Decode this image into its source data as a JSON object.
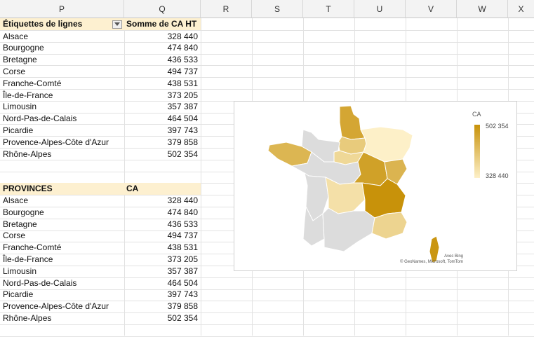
{
  "columns": [
    "P",
    "Q",
    "R",
    "S",
    "T",
    "U",
    "V",
    "W",
    "X"
  ],
  "pivot": {
    "header_label": "Étiquettes de lignes",
    "header_value": "Somme de CA HT",
    "filter_icon": "dropdown-arrow-icon",
    "rows": [
      {
        "label": "Alsace",
        "value": "328 440"
      },
      {
        "label": "Bourgogne",
        "value": "474 840"
      },
      {
        "label": "Bretagne",
        "value": "436 533"
      },
      {
        "label": "Corse",
        "value": "494 737"
      },
      {
        "label": "Franche-Comté",
        "value": "438 531"
      },
      {
        "label": "Île-de-France",
        "value": "373 205"
      },
      {
        "label": "Limousin",
        "value": "357 387"
      },
      {
        "label": "Nord-Pas-de-Calais",
        "value": "464 504"
      },
      {
        "label": "Picardie",
        "value": "397 743"
      },
      {
        "label": "Provence-Alpes-Côte d'Azur",
        "value": "379 858"
      },
      {
        "label": "Rhône-Alpes",
        "value": "502 354"
      }
    ]
  },
  "provinces": {
    "header_label": "PROVINCES",
    "header_value": "CA",
    "rows": [
      {
        "label": "Alsace",
        "value": "328 440"
      },
      {
        "label": "Bourgogne",
        "value": "474 840"
      },
      {
        "label": "Bretagne",
        "value": "436 533"
      },
      {
        "label": "Corse",
        "value": "494 737"
      },
      {
        "label": "Franche-Comté",
        "value": "438 531"
      },
      {
        "label": "Île-de-France",
        "value": "373 205"
      },
      {
        "label": "Limousin",
        "value": "357 387"
      },
      {
        "label": "Nord-Pas-de-Calais",
        "value": "464 504"
      },
      {
        "label": "Picardie",
        "value": "397 743"
      },
      {
        "label": "Provence-Alpes-Côte d'Azur",
        "value": "379 858"
      },
      {
        "label": "Rhône-Alpes",
        "value": "502 354"
      }
    ]
  },
  "map": {
    "legend_title": "CA",
    "legend_max": "502 354",
    "legend_min": "328 440",
    "attribution_1": "Avec Bing",
    "attribution_2": "© GeoNames, Microsoft, TomTom",
    "color_low": "#fdf0c8",
    "color_high": "#c8920a",
    "color_nodata": "#dcdcdc"
  }
}
